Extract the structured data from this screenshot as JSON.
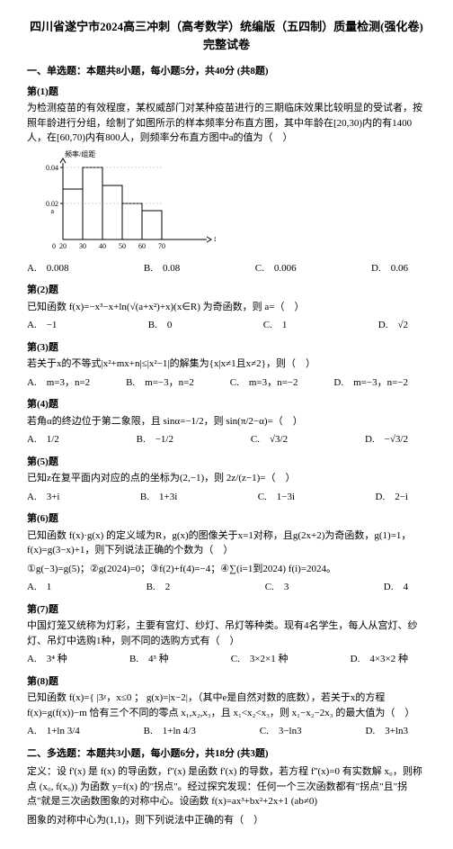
{
  "title": "四川省遂宁市2024高三冲刺（高考数学）统编版（五四制）质量检测(强化卷)完整试卷",
  "section1_header": "一、单选题：本题共8小题，每小题5分，共40分 (共8题)",
  "section2_header": "二、多选题：本题共3小题，每小题6分，共18分 (共3题)",
  "q1": {
    "label": "第(1)题",
    "body": "为检测疫苗的有效程度，某权威部门对某种疫苗进行的三期临床效果比较明显的受试者，按照年龄进行分组，绘制了如图所示的样本频率分布直方图，其中年龄在[20,30)内的有1400人，在[60,70)内有800人，则频率分布直方图中a的值为（　）",
    "optA": "A.　0.008",
    "optB": "B.　0.08",
    "optC": "C.　0.006",
    "optD": "D.　0.06"
  },
  "chart": {
    "xlabel": "年龄/岁",
    "xticks": [
      "20",
      "30",
      "40",
      "50",
      "60",
      "70"
    ],
    "yticks": [
      "0.04",
      "0.02"
    ],
    "bar_heights": [
      0.028,
      0.04,
      0.03,
      0.02,
      0.016
    ],
    "bar_color": "#ffffff",
    "border_color": "#000000",
    "axis_color": "#000000",
    "y_label_top": "频率/组距",
    "width": 160,
    "height": 110
  },
  "q2": {
    "label": "第(2)题",
    "body": "已知函数 f(x)=−x³−x+ln(√(a+x²)+x)(x∈R) 为奇函数，则 a=（　）",
    "optA": "A.　−1",
    "optB": "B.　0",
    "optC": "C.　1",
    "optD": "D.　√2"
  },
  "q3": {
    "label": "第(3)题",
    "body": "若关于x的不等式|x²+mx+n|≤|x²−1|的解集为{x|x≠1且x≠2}，则（　）",
    "optA": "A.　m=3，n=2",
    "optB": "B.　m=−3，n=2",
    "optC": "C.　m=3，n=−2",
    "optD": "D.　m=−3，n=−2"
  },
  "q4": {
    "label": "第(4)题",
    "body": "若角α的终边位于第二象限，且 sinα=−1/2，则 sin(π/2−α)=（　）",
    "optA": "A.　1/2",
    "optB": "B.　−1/2",
    "optC": "C.　√3/2",
    "optD": "D.　−√3/2"
  },
  "q5": {
    "label": "第(5)题",
    "body": "已知z在复平面内对应的点的坐标为(2,−1)，则 2z/(z−1)=（　）",
    "optA": "A.　3+i",
    "optB": "B.　1+3i",
    "optC": "C.　1−3i",
    "optD": "D.　2−i"
  },
  "q6": {
    "label": "第(6)题",
    "body": "已知函数 f(x)·g(x) 的定义域为R，g(x)的图像关于x=1对称，且g(2x+2)为奇函数，g(1)=1，f(x)=g(3−x)+1，则下列说法正确的个数为（　）",
    "body2": "①g(−3)=g(5)；②g(2024)=0；③f(2)+f(4)=−4；④∑(i=1到2024) f(i)=2024。",
    "optA": "A.　1",
    "optB": "B.　2",
    "optC": "C.　3",
    "optD": "D.　4"
  },
  "q7": {
    "label": "第(7)题",
    "body": "中国灯笼又统称为灯彩，主要有宫灯、纱灯、吊灯等种类。现有4名学生，每人从宫灯、纱灯、吊灯中选购1种，则不同的选购方式有（　）",
    "optA": "A.　3⁴ 种",
    "optB": "B.　4³ 种",
    "optC": "C.　3×2×1 种",
    "optD": "D.　4×3×2 种"
  },
  "q8": {
    "label": "第(8)题",
    "body": "已知函数 f(x)={ |3ᵡ，x≤0 ； g(x)=|x−2|，（其中e是自然对数的底数），若关于x的方程 f(x)=g(f(x))−m 恰有三个不同的零点 x₁,x₂,x₃，且 x₁<x₂<x₃，则 x₁−x₂−2x₃ 的最大值为（　）",
    "optA": "A.　1+ln 3/4",
    "optB": "B.　1+ln 4/3",
    "optC": "C.　3−ln3",
    "optD": "D.　3+ln3"
  },
  "q9": {
    "body1": "定义：设 f'(x) 是 f(x) 的导函数，f''(x) 是函数 f'(x) 的导数，若方程 f''(x)=0 有实数解 x₀，则称点 (x₀, f(x₀)) 为函数 y=f(x) 的\"拐点\"。经过探究发现：任何一个三次函数都有\"拐点\"且\"拐点\"就是三次函数图象的对称中心。设函数 f(x)=ax³+bx²+2x+1 (ab≠0)",
    "body2": "图象的对称中心为(1,1)，则下列说法中正确的有（　）"
  }
}
